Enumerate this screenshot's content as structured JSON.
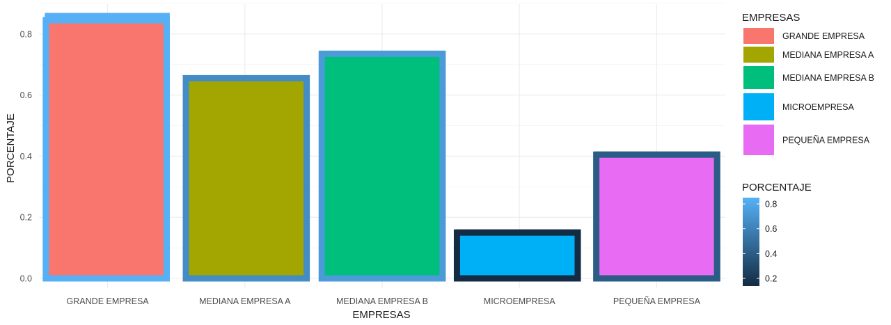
{
  "chart_data": {
    "type": "bar",
    "xlabel": "EMPRESAS",
    "ylabel": "PORCENTAJE",
    "categories": [
      "GRANDE EMPRESA",
      "MEDIANA EMPRESA A",
      "MEDIANA EMPRESA B",
      "MICROEMPRESA",
      "PEQUEÑA EMPRESA"
    ],
    "values": [
      0.845,
      0.655,
      0.735,
      0.15,
      0.405
    ],
    "ylim": [
      0,
      0.86
    ],
    "yticks": [
      0.0,
      0.2,
      0.4,
      0.6,
      0.8
    ],
    "ytick_labels": [
      "0.0",
      "0.2",
      "0.4",
      "0.6",
      "0.8"
    ],
    "grid": true,
    "fill_legend": {
      "title": "EMPRESAS",
      "position": "right",
      "items": [
        {
          "label": "GRANDE EMPRESA",
          "color": "#F8766D"
        },
        {
          "label": "MEDIANA EMPRESA A",
          "color": "#A3A500"
        },
        {
          "label": "MEDIANA EMPRESA B",
          "color": "#00BF7D"
        },
        {
          "label": "MICROEMPRESA",
          "color": "#00B0F6"
        },
        {
          "label": "PEQUEÑA EMPRESA",
          "color": "#E76BF3"
        }
      ]
    },
    "color_legend": {
      "title": "PORCENTAJE",
      "position": "right",
      "ticks": [
        0.8,
        0.6,
        0.4,
        0.2
      ],
      "tick_labels": [
        "0.8",
        "0.6",
        "0.4",
        "0.2"
      ],
      "gradient": [
        "#132B43",
        "#56B1F7"
      ]
    }
  }
}
